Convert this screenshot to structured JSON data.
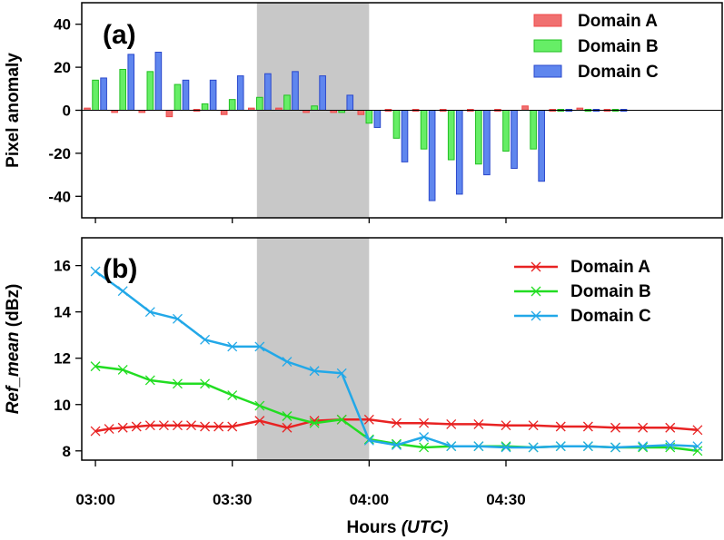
{
  "figure": {
    "xlabel_main": "Hours ",
    "xlabel_italic": "(UTC)"
  },
  "chart_data": [
    {
      "type": "bar",
      "panel_label": "(a)",
      "ylabel": "Pixel anomaly",
      "ylim": [
        -50,
        50
      ],
      "yticks": [
        -40,
        -20,
        0,
        20,
        40
      ],
      "xlim": [
        -0.5,
        22.9
      ],
      "highlight_interval": [
        5.9,
        10.0
      ],
      "grid": false,
      "legend_position": "top-right",
      "groups": 20,
      "series": [
        {
          "name": "Domain A",
          "color": "#f04848",
          "fill": "#f07070",
          "offset": -0.3,
          "values": [
            1,
            -1,
            -1,
            -3,
            0,
            -2,
            1,
            1,
            -1,
            -1,
            -2,
            0,
            0,
            0,
            0,
            0,
            2,
            0,
            1,
            0
          ]
        },
        {
          "name": "Domain B",
          "color": "#22c022",
          "fill": "#66ee66",
          "offset": 0,
          "values": [
            14,
            19,
            18,
            12,
            3,
            5,
            6,
            7,
            2,
            -1,
            -6,
            -13,
            -18,
            -23,
            -25,
            -19,
            -18,
            0,
            0,
            0
          ]
        },
        {
          "name": "Domain C",
          "color": "#2a48cc",
          "fill": "#5f86ee",
          "offset": 0.3,
          "values": [
            15,
            26,
            27,
            14,
            14,
            16,
            17,
            18,
            16,
            7,
            -8,
            -24,
            -42,
            -39,
            -30,
            -27,
            -33,
            0,
            0,
            0
          ]
        }
      ]
    },
    {
      "type": "line",
      "panel_label": "(b)",
      "ylabel_italic": "Ref_mean",
      "ylabel_rest": " (dBz)",
      "ylim": [
        7.6,
        17.2
      ],
      "yticks": [
        8,
        10,
        12,
        14,
        16
      ],
      "xlabel": "Hours (UTC)",
      "xlim": [
        -0.5,
        22.9
      ],
      "xticks": [
        0,
        5,
        10,
        15
      ],
      "xticklabels": [
        "03:00",
        "03:30",
        "04:00",
        "04:30"
      ],
      "highlight_interval": [
        5.9,
        10.0
      ],
      "grid": false,
      "legend_position": "top-right",
      "series": [
        {
          "name": "Domain A",
          "color": "#e82222",
          "x": [
            0,
            0.5,
            1,
            1.5,
            2,
            2.5,
            3,
            3.5,
            4,
            4.5,
            5,
            6,
            7,
            8,
            9,
            10,
            11,
            12,
            13,
            14,
            15,
            16,
            17,
            18,
            19,
            20,
            21,
            22
          ],
          "y": [
            8.85,
            8.95,
            9.0,
            9.05,
            9.1,
            9.1,
            9.1,
            9.1,
            9.05,
            9.05,
            9.05,
            9.3,
            9.0,
            9.3,
            9.35,
            9.35,
            9.2,
            9.2,
            9.15,
            9.15,
            9.1,
            9.1,
            9.05,
            9.05,
            9.0,
            9.0,
            9.0,
            8.9
          ]
        },
        {
          "name": "Domain B",
          "color": "#22dd22",
          "x": [
            0,
            1,
            2,
            3,
            4,
            5,
            6,
            7,
            8,
            9,
            10,
            11,
            12,
            13,
            14,
            15,
            16,
            17,
            18,
            19,
            20,
            21,
            22
          ],
          "y": [
            11.65,
            11.5,
            11.05,
            10.9,
            10.9,
            10.4,
            9.95,
            9.5,
            9.2,
            9.35,
            8.5,
            8.3,
            8.15,
            8.2,
            8.2,
            8.2,
            8.15,
            8.2,
            8.2,
            8.15,
            8.15,
            8.15,
            8.0
          ]
        },
        {
          "name": "Domain C",
          "color": "#22a8e8",
          "x": [
            0,
            1,
            2,
            3,
            4,
            5,
            6,
            7,
            8,
            9,
            10,
            11,
            12,
            13,
            14,
            15,
            16,
            17,
            18,
            19,
            20,
            21,
            22
          ],
          "y": [
            15.75,
            14.9,
            14.0,
            13.7,
            12.8,
            12.5,
            12.5,
            11.85,
            11.45,
            11.35,
            8.45,
            8.25,
            8.6,
            8.2,
            8.2,
            8.15,
            8.15,
            8.2,
            8.2,
            8.15,
            8.2,
            8.25,
            8.2
          ]
        }
      ]
    }
  ]
}
